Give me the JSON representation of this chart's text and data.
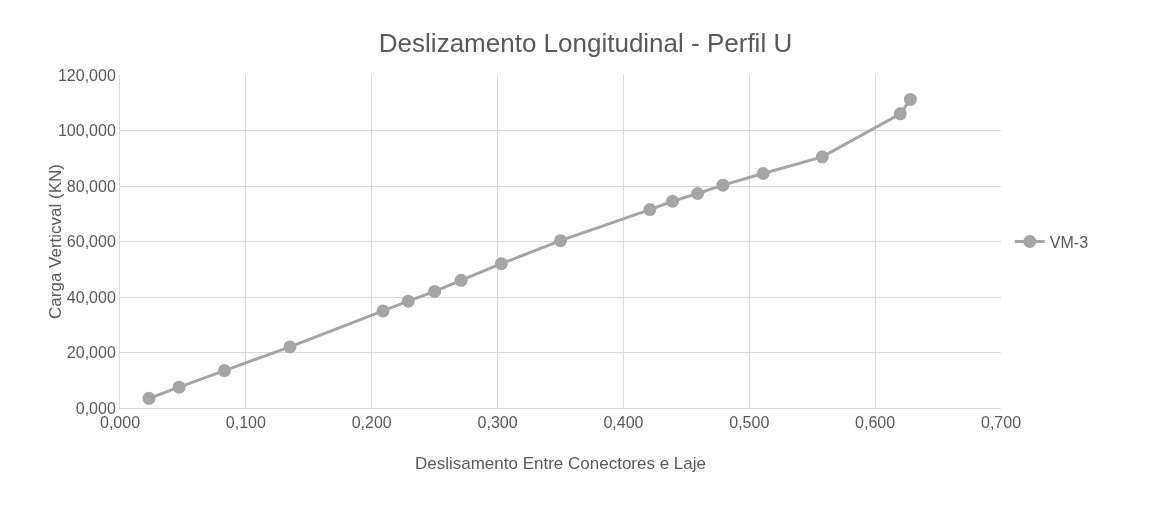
{
  "chart_data": {
    "type": "line",
    "title": "Deslizamento Longitudinal - Perfil U",
    "xlabel": "Deslisamento Entre Conectores e Laje",
    "ylabel": "Carga Verticval (KN)",
    "series": [
      {
        "name": "VM-3",
        "color": "#a5a5a5",
        "x": [
          0.023,
          0.047,
          0.083,
          0.135,
          0.209,
          0.229,
          0.25,
          0.271,
          0.303,
          0.35,
          0.421,
          0.439,
          0.459,
          0.479,
          0.511,
          0.558,
          0.62,
          0.628
        ],
        "values": [
          3.5,
          7.5,
          13.5,
          22,
          35,
          38.5,
          42,
          46,
          52,
          60.3,
          71.5,
          74.5,
          77.3,
          80.3,
          84.5,
          90.5,
          106,
          111.2
        ]
      }
    ],
    "xlim": [
      0,
      0.7
    ],
    "xticks": [
      {
        "value": 0,
        "label": "0,000"
      },
      {
        "value": 0.1,
        "label": "0,100"
      },
      {
        "value": 0.2,
        "label": "0,200"
      },
      {
        "value": 0.3,
        "label": "0,300"
      },
      {
        "value": 0.4,
        "label": "0,400"
      },
      {
        "value": 0.5,
        "label": "0,500"
      },
      {
        "value": 0.6,
        "label": "0,600"
      },
      {
        "value": 0.7,
        "label": "0,700"
      }
    ],
    "ylim": [
      0,
      120
    ],
    "yticks": [
      {
        "value": 0,
        "label": "0,000"
      },
      {
        "value": 20,
        "label": "20,000"
      },
      {
        "value": 40,
        "label": "40,000"
      },
      {
        "value": 60,
        "label": "60,000"
      },
      {
        "value": 80,
        "label": "80,000"
      },
      {
        "value": 100,
        "label": "100,000"
      },
      {
        "value": 120,
        "label": "120,000"
      }
    ],
    "grid": true,
    "legend": "right",
    "marker": "circle",
    "line_style": "solid"
  }
}
